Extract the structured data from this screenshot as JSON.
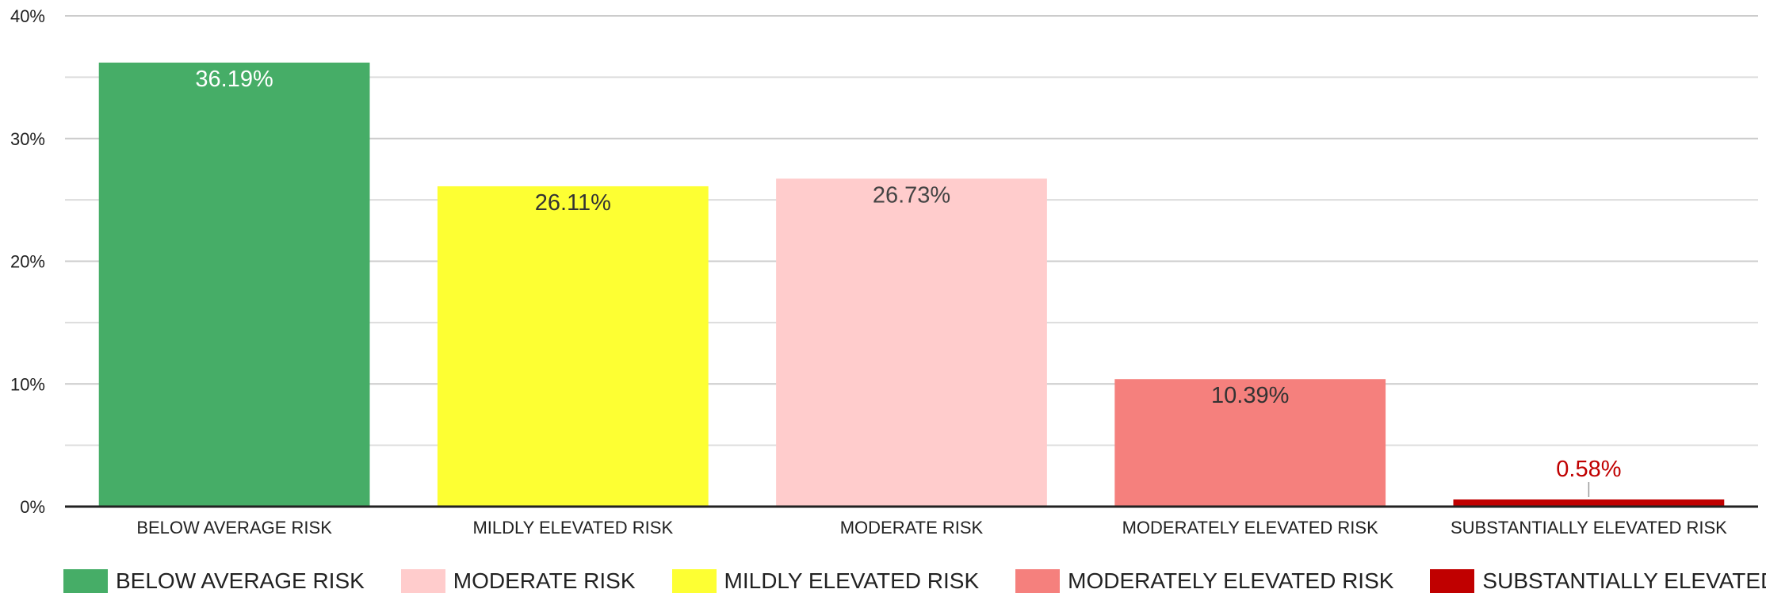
{
  "chart_data": {
    "type": "bar",
    "categories": [
      "BELOW AVERAGE RISK",
      "MILDLY ELEVATED RISK",
      "MODERATE RISK",
      "MODERATELY ELEVATED RISK",
      "SUBSTANTIALLY ELEVATED RISK"
    ],
    "values": [
      36.19,
      26.11,
      26.73,
      10.39,
      0.58
    ],
    "data_labels": [
      "36.19%",
      "26.11%",
      "26.73%",
      "10.39%",
      "0.58%"
    ],
    "bar_colors": [
      "#46ad67",
      "#fdff33",
      "#ffcccc",
      "#f5807d",
      "#c00000"
    ],
    "data_label_colors": [
      "#ffffff",
      "#333333",
      "#444444",
      "#333333",
      "#c00000"
    ],
    "ylim": [
      0,
      40
    ],
    "y_ticks": [
      0,
      10,
      20,
      30,
      40
    ],
    "y_tick_labels": [
      "0%",
      "10%",
      "20%",
      "30%",
      "40%"
    ],
    "grid": true,
    "minor_gridlines": true,
    "title": "",
    "xlabel": "",
    "ylabel": "",
    "legend": {
      "position": "bottom",
      "items": [
        {
          "label": "BELOW AVERAGE RISK",
          "color": "#46ad67"
        },
        {
          "label": "MODERATE RISK",
          "color": "#ffcccc"
        },
        {
          "label": "MILDLY ELEVATED RISK",
          "color": "#fdff33"
        },
        {
          "label": "MODERATELY ELEVATED RISK",
          "color": "#f5807d"
        },
        {
          "label": "SUBSTANTIALLY ELEVATED RISK",
          "color": "#c00000"
        }
      ]
    }
  }
}
